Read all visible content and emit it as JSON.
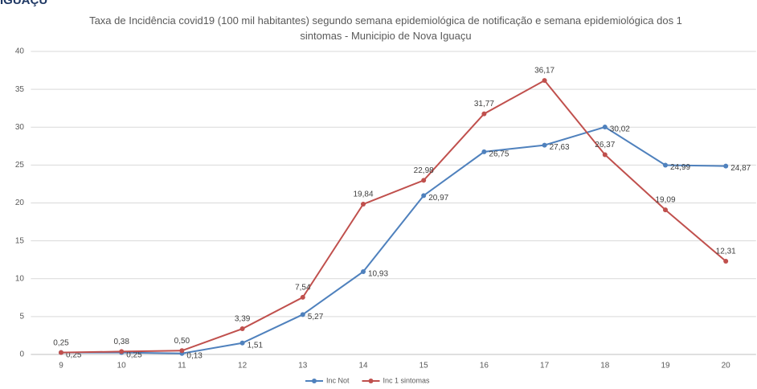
{
  "logo_text": "IGUAÇU",
  "chart_data": {
    "type": "line",
    "title": "Taxa de Incidência covid19 (100 mil habitantes) segundo semana epidemiológica de notificação e semana epidemiológica dos 1 sintomas - Municipio de Nova Iguaçu",
    "categories": [
      "9",
      "10",
      "11",
      "12",
      "13",
      "14",
      "15",
      "16",
      "17",
      "18",
      "19",
      "20"
    ],
    "series": [
      {
        "name": "Inc Not",
        "color": "#4f81bd",
        "values": [
          0.25,
          0.25,
          0.13,
          1.51,
          5.27,
          10.93,
          20.97,
          26.75,
          27.63,
          30.02,
          24.99,
          24.87
        ],
        "value_labels": [
          "0,25",
          "0,25",
          "0,13",
          "1,51",
          "5,27",
          "10,93",
          "20,97",
          "26,75",
          "27,63",
          "30,02",
          "24,99",
          "24,87"
        ]
      },
      {
        "name": "Inc 1 sintomas",
        "color": "#c0504d",
        "values": [
          0.25,
          0.38,
          0.5,
          3.39,
          7.54,
          19.84,
          22.98,
          31.77,
          36.17,
          26.37,
          19.09,
          12.31
        ],
        "value_labels": [
          "0,25",
          "0,38",
          "0,50",
          "3,39",
          "7,54",
          "19,84",
          "22,98",
          "31,77",
          "36,17",
          "26,37",
          "19,09",
          "12,31"
        ]
      }
    ],
    "ylim": [
      0,
      40
    ],
    "yticks": [
      0,
      5,
      10,
      15,
      20,
      25,
      30,
      35,
      40
    ],
    "grid": true,
    "legend": "bottom"
  }
}
